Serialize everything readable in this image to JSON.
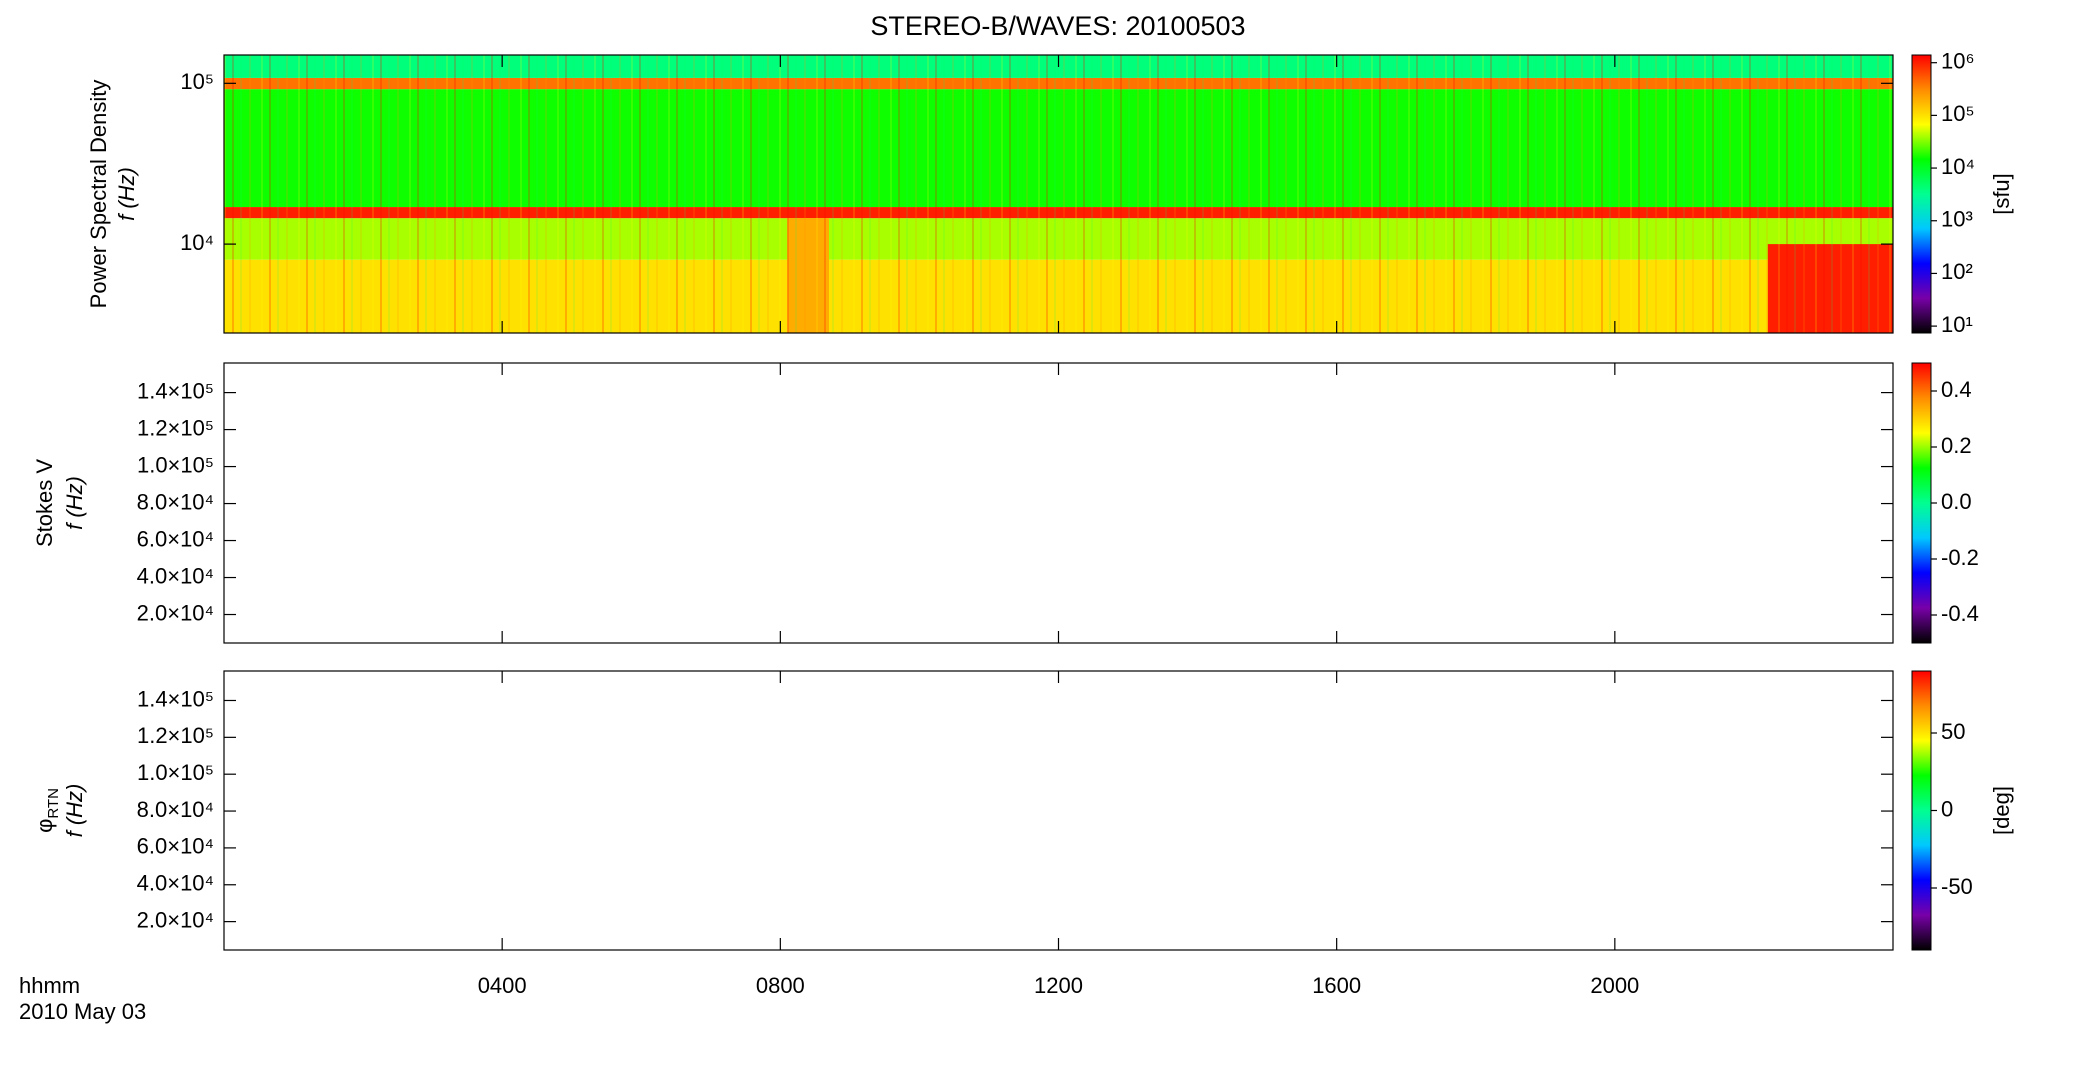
{
  "title": "STEREO-B/WAVES: 20100503",
  "x_axis": {
    "label": "hhmm",
    "date": "2010 May 03",
    "xlim": [
      0,
      24
    ],
    "xticks": [
      {
        "value": 4,
        "label": "0400"
      },
      {
        "value": 8,
        "label": "0800"
      },
      {
        "value": 12,
        "label": "1200"
      },
      {
        "value": 16,
        "label": "1600"
      },
      {
        "value": 20,
        "label": "2000"
      }
    ]
  },
  "colormap": [
    "#000000",
    "#7800a8",
    "#0000ff",
    "#00c8ff",
    "#00ff90",
    "#00ff00",
    "#ffff00",
    "#ff8c00",
    "#ff0000"
  ],
  "chart_data": [
    {
      "type": "spectrogram",
      "ylabel": "Power Spectral Density",
      "ylabel2": "f (Hz)",
      "ylog": true,
      "ylim": [
        2800,
        150000
      ],
      "yticks": [
        {
          "value": 10000,
          "label": "10⁴"
        },
        {
          "value": 100000,
          "label": "10⁵"
        }
      ],
      "clog": true,
      "clim": [
        7.4,
        1400000
      ],
      "colorbar_label": "[sfu]",
      "cticks": [
        {
          "value": 10,
          "label": "10¹"
        },
        {
          "value": 100,
          "label": "10²"
        },
        {
          "value": 1000,
          "label": "10³"
        },
        {
          "value": 10000,
          "label": "10⁴"
        },
        {
          "value": 100000,
          "label": "10⁵"
        },
        {
          "value": 1000000,
          "label": "10⁶"
        }
      ],
      "bands": [
        {
          "t": [
            0,
            24
          ],
          "f": [
            2800,
            8000
          ],
          "level": 100000
        },
        {
          "t": [
            0,
            24
          ],
          "f": [
            8000,
            14500
          ],
          "level": 40000
        },
        {
          "t": [
            0,
            24
          ],
          "f": [
            14500,
            17000
          ],
          "level": 1000000
        },
        {
          "t": [
            0,
            24
          ],
          "f": [
            17000,
            92000
          ],
          "level": 16000
        },
        {
          "t": [
            0,
            24
          ],
          "f": [
            92000,
            108000
          ],
          "level": 400000
        },
        {
          "t": [
            0,
            24
          ],
          "f": [
            108000,
            150000
          ],
          "level": 4000
        },
        {
          "t": [
            8.1,
            8.7
          ],
          "f": [
            2800,
            14500
          ],
          "level": 200000
        },
        {
          "t": [
            22.2,
            24
          ],
          "f": [
            2800,
            10000
          ],
          "level": 1000000
        }
      ]
    },
    {
      "type": "spectrogram",
      "ylabel": "Stokes V",
      "ylabel2": "f (Hz)",
      "ylog": false,
      "ylim": [
        4600,
        156000
      ],
      "yticks": [
        {
          "value": 20000,
          "label": "2.0×10⁴"
        },
        {
          "value": 40000,
          "label": "4.0×10⁴"
        },
        {
          "value": 60000,
          "label": "6.0×10⁴"
        },
        {
          "value": 80000,
          "label": "8.0×10⁴"
        },
        {
          "value": 100000,
          "label": "1.0×10⁵"
        },
        {
          "value": 120000,
          "label": "1.2×10⁵"
        },
        {
          "value": 140000,
          "label": "1.4×10⁵"
        }
      ],
      "clog": false,
      "clim": [
        -0.5,
        0.5
      ],
      "cticks": [
        -0.4,
        -0.2,
        {
          "value": 0,
          "label": "0.0"
        },
        0.2,
        0.4
      ],
      "bands": []
    },
    {
      "type": "spectrogram",
      "ylabel": "φ",
      "ylabel_sub": "RTN",
      "ylabel2": "f (Hz)",
      "ylog": false,
      "ylim": [
        4600,
        156000
      ],
      "yticks": [
        {
          "value": 20000,
          "label": "2.0×10⁴"
        },
        {
          "value": 40000,
          "label": "4.0×10⁴"
        },
        {
          "value": 60000,
          "label": "6.0×10⁴"
        },
        {
          "value": 80000,
          "label": "8.0×10⁴"
        },
        {
          "value": 100000,
          "label": "1.0×10⁵"
        },
        {
          "value": 120000,
          "label": "1.2×10⁵"
        },
        {
          "value": 140000,
          "label": "1.4×10⁵"
        }
      ],
      "clog": false,
      "clim": [
        -90,
        90
      ],
      "colorbar_label": "[deg]",
      "cticks": [
        -50,
        0,
        50
      ],
      "bands": []
    }
  ]
}
